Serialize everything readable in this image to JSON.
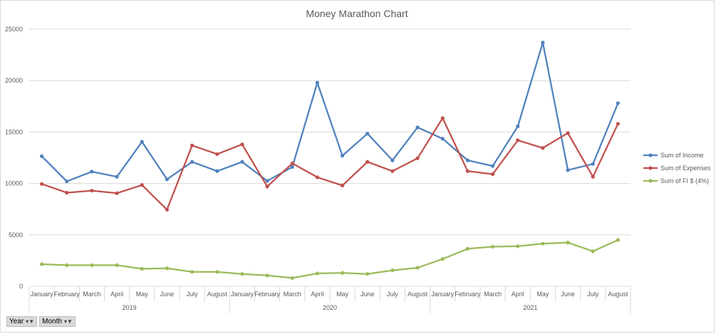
{
  "chart_data": {
    "type": "line",
    "title": "Money Marathon Chart",
    "xlabel": "",
    "ylabel": "",
    "ylim": [
      0,
      25000
    ],
    "yticks": [
      "0",
      "5000",
      "10000",
      "15000",
      "20000",
      "25000"
    ],
    "grid": true,
    "legend_position": "right",
    "months": [
      "January",
      "February",
      "March",
      "April",
      "May",
      "June",
      "July",
      "August",
      "January",
      "February",
      "March",
      "April",
      "May",
      "June",
      "July",
      "August",
      "January",
      "February",
      "March",
      "April",
      "May",
      "June",
      "July",
      "August"
    ],
    "years": [
      "2019",
      "2020",
      "2021"
    ],
    "series": [
      {
        "name": "Sum of Income",
        "color": "#4f81bd",
        "values": [
          12650,
          10200,
          11150,
          10650,
          14050,
          10400,
          12100,
          11200,
          12100,
          10250,
          11600,
          19800,
          12700,
          14850,
          12250,
          15450,
          14350,
          12250,
          11700,
          15550,
          23700,
          11300,
          11900,
          17800
        ]
      },
      {
        "name": "Sum of Expenses",
        "color": "#c0504d",
        "values": [
          9950,
          9100,
          9300,
          9050,
          9850,
          7450,
          13700,
          12850,
          13800,
          9700,
          11950,
          10600,
          9800,
          12100,
          11200,
          12450,
          16350,
          11200,
          10900,
          14200,
          13450,
          14900,
          10650,
          15800
        ]
      },
      {
        "name": "Sum of FI $ (4%)",
        "color": "#9bbb59",
        "values": [
          2150,
          2050,
          2050,
          2050,
          1700,
          1750,
          1400,
          1400,
          1200,
          1050,
          800,
          1250,
          1300,
          1200,
          1550,
          1800,
          2650,
          3650,
          3850,
          3900,
          4150,
          4250,
          3400,
          4500
        ]
      }
    ]
  },
  "filters": [
    {
      "label": "Year",
      "icon": "filter-dropdown-icon"
    },
    {
      "label": "Month",
      "icon": "filter-dropdown-icon"
    }
  ]
}
